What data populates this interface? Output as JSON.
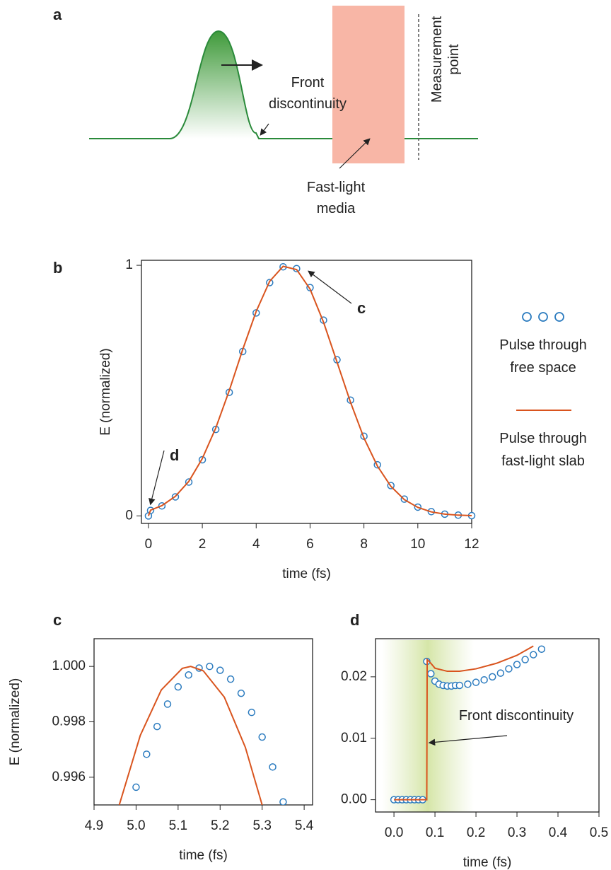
{
  "diagram": {
    "panel_label": "a",
    "front_label": "Front discontinuity",
    "media_label": "Fast-light media",
    "measure_label": "Measurement point"
  },
  "chart_data": [
    {
      "type": "line",
      "panel_label": "b",
      "xlabel": "time (fs)",
      "ylabel": "E (normalized)",
      "xlim": [
        -0.26,
        12
      ],
      "ylim": [
        -0.03,
        1.02
      ],
      "xticks": [
        0,
        2,
        4,
        6,
        8,
        10,
        12
      ],
      "yticks": [
        0,
        1
      ],
      "legend": "right",
      "annotations": [
        "c",
        "d"
      ],
      "series": [
        {
          "name": "Pulse through free space",
          "mode": "markers",
          "color": "#2b7bbf",
          "x": [
            0,
            0.08,
            0.5,
            1,
            1.5,
            2,
            2.5,
            3,
            3.5,
            4,
            4.5,
            5,
            5.5,
            6,
            6.5,
            7,
            7.5,
            8,
            8.5,
            9,
            9.5,
            10,
            10.5,
            11,
            11.5,
            12
          ],
          "values": [
            0,
            0.022,
            0.04,
            0.076,
            0.135,
            0.224,
            0.345,
            0.493,
            0.656,
            0.81,
            0.931,
            0.994,
            0.987,
            0.911,
            0.781,
            0.623,
            0.462,
            0.318,
            0.204,
            0.121,
            0.067,
            0.035,
            0.017,
            0.007,
            0.003,
            0.001
          ]
        },
        {
          "name": "Pulse through fast-light slab",
          "mode": "line",
          "color": "#d9541e",
          "x": [
            0,
            0.08,
            0.5,
            1,
            1.5,
            2,
            2.5,
            3,
            3.5,
            4,
            4.5,
            5,
            5.5,
            6,
            6.5,
            7,
            7.5,
            8,
            8.5,
            9,
            9.5,
            10,
            10.5,
            11,
            11.5,
            12
          ],
          "values": [
            0,
            0.023,
            0.041,
            0.078,
            0.138,
            0.229,
            0.351,
            0.5,
            0.664,
            0.816,
            0.936,
            0.996,
            0.983,
            0.905,
            0.773,
            0.614,
            0.454,
            0.311,
            0.199,
            0.118,
            0.065,
            0.034,
            0.016,
            0.007,
            0.003,
            0.001
          ]
        }
      ]
    },
    {
      "type": "line",
      "panel_label": "c",
      "xlabel": "time (fs)",
      "ylabel": "E (normalized)",
      "xlim": [
        4.9,
        5.42
      ],
      "ylim": [
        0.995,
        1.001
      ],
      "xticks": [
        4.9,
        {
          "value": 5,
          "label": "5.0"
        },
        5.1,
        5.2,
        5.3,
        5.4
      ],
      "yticks": [
        0.996,
        0.998,
        {
          "value": 1,
          "label": "1.000"
        }
      ],
      "series": [
        {
          "mode": "markers",
          "color": "#2b7bbf",
          "x": [
            5.0,
            5.025,
            5.05,
            5.075,
            5.1,
            5.125,
            5.15,
            5.175,
            5.2,
            5.225,
            5.25,
            5.275,
            5.3,
            5.325,
            5.35
          ],
          "values": [
            0.99564,
            0.99683,
            0.99783,
            0.99864,
            0.99926,
            0.99969,
            0.99994,
            1.0,
            0.99986,
            0.99954,
            0.99903,
            0.99834,
            0.99745,
            0.99637,
            0.99511
          ]
        },
        {
          "mode": "line",
          "color": "#d9541e",
          "x": [
            4.96,
            5.01,
            5.06,
            5.11,
            5.13,
            5.16,
            5.21,
            5.26,
            5.3
          ],
          "values": [
            0.995,
            0.99751,
            0.99915,
            0.99993,
            1.0,
            0.99984,
            0.99889,
            0.99708,
            0.995
          ]
        }
      ]
    },
    {
      "type": "line",
      "panel_label": "d",
      "xlabel": "time (fs)",
      "xlim": [
        -0.045,
        0.5
      ],
      "ylim": [
        -0.002,
        0.0262
      ],
      "xticks": [
        {
          "value": 0,
          "label": "0.0"
        },
        0.1,
        0.2,
        0.3,
        0.4,
        0.5
      ],
      "yticks": [
        {
          "value": 0,
          "label": "0.00"
        },
        0.01,
        0.02
      ],
      "annotations": [
        "Front discontinuity"
      ],
      "series": [
        {
          "mode": "markers",
          "color": "#2b7bbf",
          "x": [
            0,
            0.01,
            0.02,
            0.03,
            0.04,
            0.05,
            0.06,
            0.07,
            0.08,
            0.09,
            0.1,
            0.11,
            0.12,
            0.13,
            0.14,
            0.15,
            0.16,
            0.18,
            0.2,
            0.22,
            0.24,
            0.26,
            0.28,
            0.3,
            0.32,
            0.34,
            0.36
          ],
          "values": [
            0,
            0,
            0,
            0,
            0,
            0,
            0,
            0,
            0.0225,
            0.0205,
            0.0193,
            0.0188,
            0.0186,
            0.0185,
            0.0185,
            0.0186,
            0.0186,
            0.0188,
            0.0191,
            0.0195,
            0.02,
            0.0206,
            0.0213,
            0.022,
            0.0228,
            0.0236,
            0.0245
          ]
        },
        {
          "mode": "line",
          "color": "#d9541e",
          "x": [
            0,
            0.08,
            0.081,
            0.09,
            0.1,
            0.13,
            0.16,
            0.2,
            0.25,
            0.3,
            0.34
          ],
          "values": [
            0,
            0,
            0.0228,
            0.0222,
            0.0214,
            0.0209,
            0.0209,
            0.0213,
            0.0222,
            0.0235,
            0.025
          ]
        }
      ]
    }
  ]
}
